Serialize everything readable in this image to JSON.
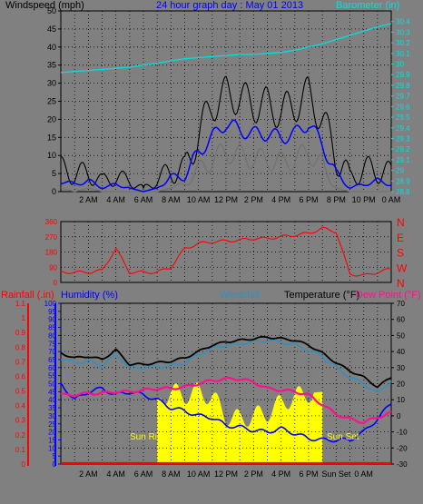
{
  "header": {
    "title": "24 hour graph day : May 01 2013",
    "left_label": "Windspeed (mph)",
    "right_label": "Barometer (in)"
  },
  "panel3_header": {
    "rainfall": "Rainfall (.in)",
    "humidity": "Humidity (%)",
    "windchill": "Windchill",
    "temperature": "Temperature (°F)",
    "dewpoint": "Dew Point (°F)"
  },
  "annotations": {
    "sunrise": "Sun Rise",
    "sunset": "Sun Set"
  },
  "colors": {
    "background": "#808080",
    "wind_avg": "#0000ff",
    "wind_gust": "#000000",
    "wind_min": "#707070",
    "barometer": "#00e0e0",
    "direction": "#ff0000",
    "temperature": "#000000",
    "windchill": "#3090c0",
    "dewpoint": "#ff1090",
    "humidity": "#0000ff",
    "sunshine": "#ffff00",
    "rainfall": "#ff0000"
  },
  "chart_data": [
    {
      "type": "line",
      "title": "24 hour graph day : May 01 2013",
      "ylabel": "Windspeed (mph)",
      "y2label": "Barometer (in)",
      "ylim": [
        0,
        50
      ],
      "y2lim": [
        28.8,
        30.5
      ],
      "yticks": [
        0,
        5,
        10,
        15,
        20,
        25,
        30,
        35,
        40,
        45,
        50
      ],
      "y2ticks": [
        "28.8",
        "28.9",
        "29",
        "29.1",
        "29.2",
        "29.3",
        "29.4",
        "29.5",
        "29.6",
        "29.7",
        "29.8",
        "29.9",
        "30",
        "30.1",
        "30.2",
        "30.3",
        "30.4"
      ],
      "x_ticks": [
        "2 AM",
        "4 AM",
        "6 AM",
        "8 AM",
        "10 AM",
        "12 PM",
        "2 PM",
        "4 PM",
        "6 PM",
        "8 PM",
        "10 PM",
        "0 AM"
      ],
      "x_hours": [
        0,
        1,
        2,
        3,
        4,
        5,
        6,
        7,
        8,
        9,
        10,
        11,
        12,
        13,
        14,
        15,
        16,
        17,
        18,
        19,
        20,
        21,
        22,
        23,
        24
      ],
      "series": [
        {
          "name": "Windspeed gust",
          "values": [
            6,
            5,
            5,
            3,
            4,
            3,
            1,
            3,
            6,
            6,
            16,
            24,
            27,
            26,
            24,
            24,
            22,
            24,
            27,
            20,
            10,
            4,
            6,
            6,
            5
          ]
        },
        {
          "name": "Windspeed avg",
          "values": [
            3,
            2,
            3,
            1,
            2,
            1,
            0,
            1,
            4,
            4,
            11,
            15,
            19,
            17,
            16,
            16,
            15,
            16,
            19,
            13,
            5,
            1,
            2,
            3,
            2
          ]
        },
        {
          "name": "Windspeed min",
          "values": [
            1,
            0,
            1,
            0,
            0,
            0,
            0,
            0,
            1,
            2,
            6,
            9,
            11,
            10,
            9,
            9,
            8,
            9,
            11,
            7,
            1,
            0,
            0,
            0,
            0
          ]
        },
        {
          "name": "Barometer",
          "values": [
            29.92,
            29.93,
            29.94,
            29.95,
            29.96,
            29.97,
            29.99,
            30.01,
            30.03,
            30.05,
            30.06,
            30.07,
            30.08,
            30.09,
            30.09,
            30.1,
            30.11,
            30.13,
            30.16,
            30.19,
            30.23,
            30.27,
            30.31,
            30.35,
            30.38
          ]
        }
      ]
    },
    {
      "type": "line",
      "ylabel": "Wind direction (deg)",
      "yticks": [
        0,
        90,
        180,
        270,
        360
      ],
      "y2ticks": [
        "N",
        "W",
        "S",
        "E",
        "N"
      ],
      "ylim": [
        0,
        360
      ],
      "x_hours": [
        0,
        1,
        2,
        3,
        4,
        5,
        6,
        7,
        8,
        9,
        10,
        11,
        12,
        13,
        14,
        15,
        16,
        17,
        18,
        19,
        20,
        21,
        22,
        23,
        24
      ],
      "series": [
        {
          "name": "Wind direction",
          "values": [
            60,
            60,
            60,
            70,
            200,
            60,
            60,
            60,
            90,
            200,
            230,
            240,
            245,
            250,
            260,
            260,
            270,
            280,
            290,
            320,
            300,
            50,
            40,
            60,
            80
          ]
        }
      ]
    },
    {
      "type": "line",
      "ylabel": "Humidity (%)",
      "y2label": "Temperature (°F)",
      "ylim": [
        0,
        100
      ],
      "y2lim": [
        -30,
        70
      ],
      "yticks": [
        0,
        5,
        10,
        15,
        20,
        25,
        30,
        35,
        40,
        45,
        50,
        55,
        60,
        65,
        70,
        75,
        80,
        85,
        90,
        95,
        100
      ],
      "rain_ticks": [
        "0",
        "0.1",
        "0.2",
        "0.3",
        "0.4",
        "0.5",
        "0.6",
        "0.7",
        "0.8",
        "0.9",
        "1",
        "1.1"
      ],
      "y2ticks": [
        -30,
        -20,
        -10,
        0,
        10,
        20,
        30,
        40,
        50,
        60,
        70
      ],
      "x_ticks": [
        "2 AM",
        "4 AM",
        "6 AM",
        "8 AM",
        "10 AM",
        "12 PM",
        "2 PM",
        "4 PM",
        "6 PM",
        "Sun Set",
        "0 AM"
      ],
      "x_hours": [
        0,
        1,
        2,
        3,
        4,
        5,
        6,
        7,
        8,
        9,
        10,
        11,
        12,
        13,
        14,
        15,
        16,
        17,
        18,
        19,
        20,
        21,
        22,
        23,
        24
      ],
      "series": [
        {
          "name": "Temperature",
          "values": [
            39,
            36,
            37,
            35,
            41,
            32,
            32,
            33,
            34,
            36,
            40,
            44,
            46,
            47,
            48,
            49,
            48,
            47,
            44,
            39,
            33,
            28,
            24,
            18,
            24
          ]
        },
        {
          "name": "Windchill",
          "values": [
            36,
            33,
            34,
            31,
            38,
            30,
            30,
            31,
            31,
            33,
            38,
            42,
            44,
            45,
            46,
            47,
            46,
            44,
            41,
            37,
            30,
            24,
            20,
            14,
            22
          ]
        },
        {
          "name": "Dew Point",
          "values": [
            13,
            13,
            14,
            14,
            15,
            15,
            16,
            17,
            17,
            18,
            20,
            22,
            23,
            23,
            21,
            17,
            16,
            15,
            13,
            7,
            1,
            -2,
            -4,
            -1,
            2
          ]
        },
        {
          "name": "Humidity",
          "values": [
            50,
            40,
            45,
            47,
            43,
            45,
            43,
            40,
            35,
            33,
            30,
            29,
            24,
            23,
            21,
            20,
            22,
            19,
            16,
            15,
            15,
            15,
            20,
            28,
            38
          ]
        },
        {
          "name": "Sunshine",
          "values": [
            0,
            0,
            0,
            0,
            0,
            0,
            0,
            40,
            45,
            43,
            45,
            42,
            30,
            28,
            30,
            32,
            38,
            42,
            44,
            45,
            0,
            0,
            0,
            0,
            0
          ]
        },
        {
          "name": "Rainfall",
          "values": [
            0,
            0,
            0,
            0,
            0,
            0,
            0,
            0,
            0,
            0,
            0,
            0,
            0,
            0,
            0,
            0,
            0,
            0,
            0,
            0,
            0,
            0,
            0,
            0,
            0
          ]
        }
      ]
    }
  ]
}
